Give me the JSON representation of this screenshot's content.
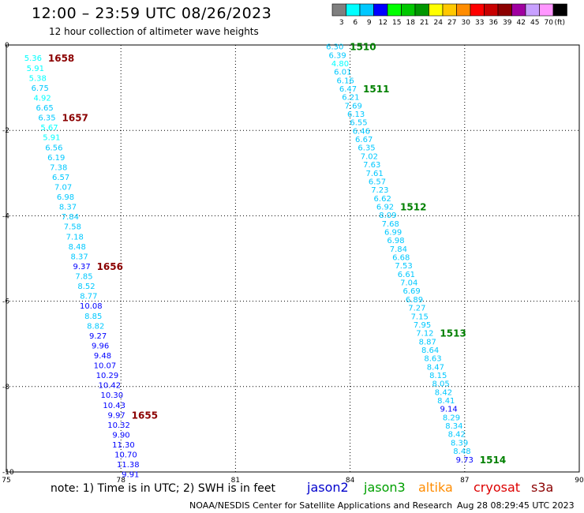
{
  "header": {
    "title": "12:00 – 23:59 UTC 08/26/2023",
    "subtitle": "12 hour collection of altimeter wave heights"
  },
  "legend": {
    "unit_label": "(ft)",
    "bins": [
      {
        "label": "3",
        "color": "#7f7f7f"
      },
      {
        "label": "6",
        "color": "#00ffff"
      },
      {
        "label": "9",
        "color": "#00c8ff"
      },
      {
        "label": "12",
        "color": "#0000ff"
      },
      {
        "label": "15",
        "color": "#00ff00"
      },
      {
        "label": "18",
        "color": "#00c800"
      },
      {
        "label": "21",
        "color": "#009600"
      },
      {
        "label": "24",
        "color": "#ffff00"
      },
      {
        "label": "27",
        "color": "#ffc800"
      },
      {
        "label": "30",
        "color": "#ff8c00"
      },
      {
        "label": "33",
        "color": "#ff0000"
      },
      {
        "label": "36",
        "color": "#c80000"
      },
      {
        "label": "39",
        "color": "#8c0000"
      },
      {
        "label": "42",
        "color": "#a000a0"
      },
      {
        "label": "45",
        "color": "#c8a0ff"
      },
      {
        "label": "70",
        "color": "#ff96ff"
      },
      {
        "label": "",
        "color": "#000000"
      }
    ]
  },
  "axes": {
    "x_ticks": [
      "75",
      "78",
      "81",
      "84",
      "87",
      "90"
    ],
    "y_ticks": [
      "0",
      "-2",
      "-4",
      "-6",
      "-8",
      "-10"
    ],
    "x_range": [
      75,
      90
    ],
    "y_range": [
      0,
      -10
    ]
  },
  "tracks": [
    {
      "satellite": "cryosat",
      "label_color": "#8b0000",
      "start": [
        75.7,
        -0.3
      ],
      "end": [
        78.25,
        -10.05
      ],
      "values": [
        "5.36",
        "5.91",
        "5.38",
        "6.75",
        "4.92",
        "6.65",
        "6.35",
        "5.67",
        "5.91",
        "6.56",
        "6.19",
        "7.38",
        "6.57",
        "7.07",
        "6.98",
        "8.37",
        "7.84",
        "7.58",
        "7.18",
        "8.48",
        "8.37",
        "9.37",
        "7.85",
        "8.52",
        "8.77",
        "10.08",
        "8.85",
        "8.82",
        "9.27",
        "9.96",
        "9.48",
        "10.07",
        "10.29",
        "10.42",
        "10.30",
        "10.43",
        "9.97",
        "10.32",
        "9.90",
        "11.30",
        "10.70",
        "11.38",
        "9.91"
      ],
      "time_labels": [
        {
          "text": "1658",
          "index": 0
        },
        {
          "text": "1657",
          "index": 6
        },
        {
          "text": "1656",
          "index": 21
        },
        {
          "text": "1655",
          "index": 36
        }
      ]
    },
    {
      "satellite": "jason3",
      "label_color": "#008000",
      "start": [
        83.6,
        -0.03
      ],
      "end": [
        87.0,
        -9.7
      ],
      "values": [
        "6.30",
        "6.39",
        "4.80",
        "6.01",
        "6.16",
        "6.47",
        "6.21",
        "7.69",
        "6.13",
        "6.55",
        "6.46",
        "6.67",
        "6.35",
        "7.02",
        "7.63",
        "7.61",
        "6.57",
        "7.23",
        "6.62",
        "6.92",
        "8.09",
        "7.68",
        "6.99",
        "6.98",
        "7.84",
        "6.68",
        "7.53",
        "6.61",
        "7.04",
        "6.69",
        "6.89",
        "7.27",
        "7.15",
        "7.95",
        "7.12",
        "8.87",
        "8.64",
        "8.63",
        "8.47",
        "8.15",
        "8.05",
        "8.42",
        "8.41",
        "9.14",
        "8.29",
        "8.34",
        "8.42",
        "8.39",
        "8.48",
        "9.73"
      ],
      "time_labels": [
        {
          "text": "1510",
          "index": 0
        },
        {
          "text": "1511",
          "index": 5
        },
        {
          "text": "1512",
          "index": 19
        },
        {
          "text": "1513",
          "index": 34
        },
        {
          "text": "1514",
          "index": 49
        }
      ]
    }
  ],
  "footer": {
    "note": "note:  1) Time is in UTC;  2) SWH is in feet",
    "satellites": [
      {
        "name": "jason2",
        "color": "#0000cc"
      },
      {
        "name": "jason3",
        "color": "#00a000"
      },
      {
        "name": "altika",
        "color": "#ff8c00"
      },
      {
        "name": "cryosat",
        "color": "#dd0000"
      },
      {
        "name": "s3a",
        "color": "#8b0000"
      }
    ],
    "credit": "NOAA/NESDIS Center for Satellite Applications and Research",
    "timestamp": "Aug 28 08:29:45 UTC 2023"
  }
}
